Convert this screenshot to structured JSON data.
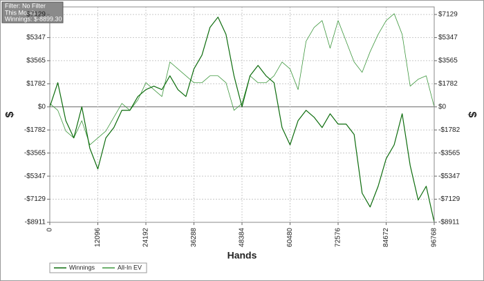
{
  "chart_data": {
    "type": "line",
    "info": [
      "Filter: No Filter",
      "This Month",
      "Winnings: $-8899.30"
    ],
    "xlabel": "Hands",
    "ylabel": "$",
    "y2label": "$",
    "x": [
      0,
      2016,
      4032,
      6048,
      8064,
      10080,
      12096,
      14112,
      16128,
      18144,
      20160,
      22176,
      24192,
      26208,
      28224,
      30240,
      32256,
      34272,
      36288,
      38304,
      40320,
      42336,
      44352,
      46368,
      48384,
      50400,
      52416,
      54432,
      56448,
      58464,
      60480,
      62496,
      64512,
      66528,
      68544,
      70560,
      72576,
      74592,
      76608,
      78624,
      80640,
      82656,
      84672,
      86688,
      88704,
      90720,
      92736,
      94752,
      96768
    ],
    "series": [
      {
        "name": "Winnings",
        "color": "#0b6b0b",
        "width": 1.2,
        "values": [
          0,
          1865,
          -1066,
          -2398,
          0,
          -3197,
          -4795,
          -2398,
          -1598,
          -266,
          -266,
          799,
          1332,
          1598,
          1332,
          2398,
          1332,
          799,
          2930,
          3996,
          6127,
          6926,
          5594,
          2398,
          0,
          2398,
          3197,
          2398,
          1865,
          -1598,
          -2930,
          -1066,
          -266,
          -799,
          -1598,
          -533,
          -1332,
          -1332,
          -2131,
          -6660,
          -7726,
          -6127,
          -3996,
          -2930,
          -533,
          -4529,
          -7193,
          -6127,
          -8899.3
        ]
      },
      {
        "name": "All-In EV",
        "color": "#3c963c",
        "width": 0.8,
        "values": [
          266,
          -266,
          -1865,
          -2398,
          -1066,
          -2930,
          -2398,
          -1865,
          -799,
          266,
          -266,
          533,
          1865,
          1332,
          799,
          3463,
          2930,
          2398,
          1865,
          1865,
          2398,
          2398,
          1865,
          -266,
          266,
          2398,
          1865,
          1865,
          2398,
          3463,
          2930,
          1332,
          5062,
          6127,
          6660,
          4529,
          6660,
          5062,
          3463,
          2664,
          4262,
          5594,
          6660,
          7193,
          5594,
          1598,
          2131,
          2398,
          0
        ]
      }
    ],
    "xlim": [
      0,
      96768
    ],
    "xticks": [
      0,
      12096,
      24192,
      36288,
      48384,
      60480,
      72576,
      84672,
      96768
    ],
    "ylim": [
      -8911,
      7715
    ],
    "yticks": [
      {
        "value": -8911,
        "label": "-$8911"
      },
      {
        "value": -7129,
        "label": "-$7129"
      },
      {
        "value": -5347,
        "label": "-$5347"
      },
      {
        "value": -3565,
        "label": "-$3565"
      },
      {
        "value": -1782,
        "label": "-$1782"
      },
      {
        "value": 0,
        "label": "$0"
      },
      {
        "value": 1782,
        "label": "$1782"
      },
      {
        "value": 3565,
        "label": "$3565"
      },
      {
        "value": 5347,
        "label": "$5347"
      },
      {
        "value": 7129,
        "label": "$7129"
      }
    ],
    "grid": true
  }
}
